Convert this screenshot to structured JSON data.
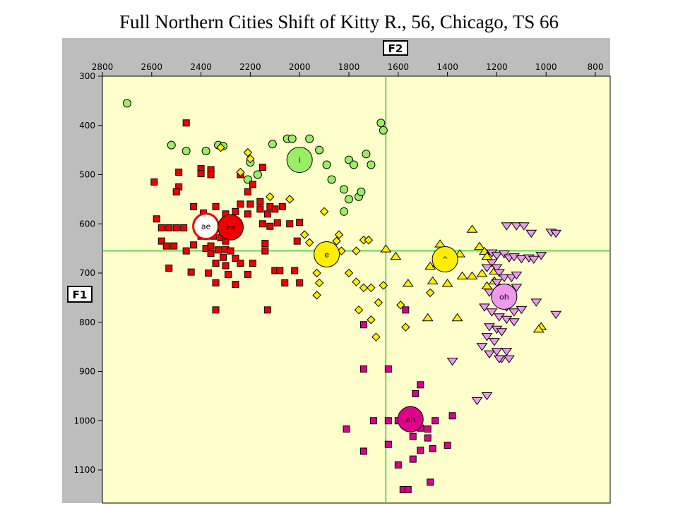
{
  "title": "Full Northern Cities Shift of Kitty R., 56, Chicago, TS 66",
  "chart_data": {
    "type": "scatter",
    "title": "Full Northern Cities Shift of Kitty R., 56, Chicago, TS 66",
    "xlabel": "F2",
    "ylabel": "F1",
    "xlim": [
      2800,
      800
    ],
    "ylim": [
      300,
      1160
    ],
    "x_reversed": true,
    "y_reversed": true,
    "x_ticks": [
      2800,
      2600,
      2400,
      2200,
      2000,
      1800,
      1600,
      1400,
      1200,
      1000,
      800
    ],
    "y_ticks": [
      300,
      400,
      500,
      600,
      700,
      800,
      900,
      1000,
      1100
    ],
    "crosshair": {
      "F2": 1650,
      "F1": 655
    },
    "colors": {
      "frame": "#bdbdbd",
      "plot_bg": "#ffffcc",
      "crosshair": "#33cc33"
    },
    "series": [
      {
        "name": "i",
        "shape": "circle",
        "color": "#99ee66",
        "mean": {
          "label": "i",
          "F2": 2000,
          "F1": 470
        },
        "points": [
          [
            2700,
            355
          ],
          [
            2520,
            440
          ],
          [
            2460,
            452
          ],
          [
            2380,
            452
          ],
          [
            2330,
            440
          ],
          [
            2310,
            442
          ],
          [
            2110,
            438
          ],
          [
            2050,
            427
          ],
          [
            2030,
            427
          ],
          [
            1960,
            427
          ],
          [
            1920,
            450
          ],
          [
            2210,
            510
          ],
          [
            2200,
            475
          ],
          [
            2170,
            500
          ],
          [
            1890,
            480
          ],
          [
            1870,
            510
          ],
          [
            1800,
            470
          ],
          [
            1780,
            480
          ],
          [
            1760,
            545
          ],
          [
            1730,
            458
          ],
          [
            1710,
            480
          ],
          [
            1820,
            530
          ],
          [
            1800,
            550
          ],
          [
            1750,
            535
          ],
          [
            1820,
            575
          ],
          [
            1670,
            395
          ],
          [
            1660,
            410
          ]
        ]
      },
      {
        "name": "ae",
        "shape": "square",
        "color": "#ee0000",
        "mean": {
          "label": "ae",
          "F2": 2280,
          "F1": 607
        },
        "second_mean": {
          "label": "ae",
          "F2": 2380,
          "F1": 605
        },
        "points": [
          [
            2590,
            515
          ],
          [
            2490,
            495
          ],
          [
            2490,
            525
          ],
          [
            2500,
            535
          ],
          [
            2400,
            488
          ],
          [
            2400,
            498
          ],
          [
            2360,
            497
          ],
          [
            2240,
            500
          ],
          [
            2190,
            520
          ],
          [
            2150,
            485
          ],
          [
            2210,
            535
          ],
          [
            2430,
            565
          ],
          [
            2390,
            578
          ],
          [
            2340,
            565
          ],
          [
            2160,
            570
          ],
          [
            2130,
            580
          ],
          [
            2120,
            565
          ],
          [
            2100,
            570
          ],
          [
            2070,
            565
          ],
          [
            2460,
            395
          ],
          [
            2360,
            490
          ],
          [
            2360,
            500
          ],
          [
            2300,
            580
          ],
          [
            2260,
            575
          ],
          [
            2240,
            560
          ],
          [
            2200,
            560
          ],
          [
            2210,
            580
          ],
          [
            2160,
            555
          ],
          [
            2300,
            600
          ],
          [
            2580,
            590
          ],
          [
            2560,
            608
          ],
          [
            2530,
            608
          ],
          [
            2500,
            608
          ],
          [
            2470,
            608
          ],
          [
            2400,
            625
          ],
          [
            2350,
            625
          ],
          [
            2320,
            628
          ],
          [
            2300,
            635
          ],
          [
            2560,
            635
          ],
          [
            2540,
            645
          ],
          [
            2510,
            645
          ],
          [
            2430,
            643
          ],
          [
            2460,
            655
          ],
          [
            2380,
            650
          ],
          [
            2360,
            645
          ],
          [
            2330,
            653
          ],
          [
            2300,
            652
          ],
          [
            2280,
            655
          ],
          [
            2360,
            660
          ],
          [
            2310,
            668
          ],
          [
            2260,
            670
          ],
          [
            2340,
            680
          ],
          [
            2300,
            685
          ],
          [
            2240,
            680
          ],
          [
            2190,
            680
          ],
          [
            2530,
            690
          ],
          [
            2440,
            698
          ],
          [
            2370,
            700
          ],
          [
            2290,
            703
          ],
          [
            2210,
            703
          ],
          [
            2340,
            720
          ],
          [
            2260,
            723
          ],
          [
            2100,
            695
          ],
          [
            2080,
            695
          ],
          [
            2020,
            695
          ],
          [
            2060,
            720
          ],
          [
            2000,
            720
          ],
          [
            2140,
            655
          ],
          [
            2010,
            635
          ],
          [
            2340,
            775
          ],
          [
            2130,
            775
          ],
          [
            2150,
            600
          ],
          [
            2120,
            605
          ],
          [
            2090,
            598
          ],
          [
            2040,
            600
          ],
          [
            2000,
            597
          ],
          [
            2140,
            640
          ]
        ]
      },
      {
        "name": "e",
        "shape": "diamond",
        "color": "#ffee00",
        "mean": {
          "label": "e",
          "F2": 1890,
          "F1": 662
        },
        "points": [
          [
            2320,
            445
          ],
          [
            2210,
            455
          ],
          [
            2200,
            468
          ],
          [
            2240,
            495
          ],
          [
            2120,
            545
          ],
          [
            2040,
            550
          ],
          [
            1900,
            575
          ],
          [
            1980,
            622
          ],
          [
            1960,
            638
          ],
          [
            1840,
            622
          ],
          [
            1850,
            635
          ],
          [
            1830,
            655
          ],
          [
            1740,
            633
          ],
          [
            1720,
            633
          ],
          [
            1770,
            655
          ],
          [
            1800,
            700
          ],
          [
            1770,
            718
          ],
          [
            1740,
            730
          ],
          [
            1710,
            730
          ],
          [
            1660,
            725
          ],
          [
            1680,
            760
          ],
          [
            1760,
            775
          ],
          [
            1710,
            795
          ],
          [
            1690,
            830
          ],
          [
            1930,
            700
          ],
          [
            1920,
            720
          ],
          [
            1930,
            745
          ],
          [
            1590,
            765
          ],
          [
            1570,
            810
          ],
          [
            1470,
            740
          ]
        ]
      },
      {
        "name": "^",
        "shape": "triangle-up",
        "color": "#ffee00",
        "mean": {
          "label": "^",
          "F2": 1410,
          "F1": 672
        },
        "points": [
          [
            1650,
            650
          ],
          [
            1610,
            665
          ],
          [
            1470,
            685
          ],
          [
            1430,
            640
          ],
          [
            1440,
            680
          ],
          [
            1350,
            660
          ],
          [
            1300,
            610
          ],
          [
            1270,
            645
          ],
          [
            1250,
            655
          ],
          [
            1240,
            665
          ],
          [
            1260,
            700
          ],
          [
            1300,
            705
          ],
          [
            1340,
            705
          ],
          [
            1400,
            720
          ],
          [
            1460,
            715
          ],
          [
            1560,
            720
          ],
          [
            1210,
            695
          ],
          [
            1210,
            715
          ],
          [
            1240,
            725
          ],
          [
            1480,
            790
          ],
          [
            1360,
            790
          ],
          [
            1020,
            808
          ],
          [
            1030,
            813
          ]
        ]
      },
      {
        "name": "oh",
        "shape": "triangle-down",
        "color": "#ee99ee",
        "mean": {
          "label": "oh",
          "F2": 1170,
          "F1": 748
        },
        "points": [
          [
            1220,
            660
          ],
          [
            1200,
            665
          ],
          [
            1170,
            662
          ],
          [
            1150,
            670
          ],
          [
            1130,
            668
          ],
          [
            1100,
            672
          ],
          [
            1070,
            670
          ],
          [
            1050,
            673
          ],
          [
            1020,
            665
          ],
          [
            1160,
            605
          ],
          [
            1120,
            605
          ],
          [
            1090,
            605
          ],
          [
            1060,
            620
          ],
          [
            980,
            618
          ],
          [
            960,
            620
          ],
          [
            1220,
            680
          ],
          [
            1200,
            690
          ],
          [
            1190,
            700
          ],
          [
            1170,
            710
          ],
          [
            1140,
            710
          ],
          [
            1120,
            705
          ],
          [
            1240,
            690
          ],
          [
            1200,
            720
          ],
          [
            1170,
            730
          ],
          [
            1140,
            735
          ],
          [
            1120,
            730
          ],
          [
            1230,
            740
          ],
          [
            1190,
            760
          ],
          [
            1160,
            770
          ],
          [
            1130,
            780
          ],
          [
            1100,
            775
          ],
          [
            1250,
            770
          ],
          [
            1220,
            780
          ],
          [
            1190,
            790
          ],
          [
            1160,
            795
          ],
          [
            1130,
            800
          ],
          [
            1230,
            810
          ],
          [
            1200,
            815
          ],
          [
            1180,
            820
          ],
          [
            1240,
            830
          ],
          [
            1210,
            840
          ],
          [
            1230,
            865
          ],
          [
            1200,
            860
          ],
          [
            1180,
            875
          ],
          [
            1160,
            860
          ],
          [
            1150,
            875
          ],
          [
            1380,
            880
          ],
          [
            1190,
            875
          ],
          [
            1260,
            850
          ],
          [
            1280,
            960
          ],
          [
            1240,
            950
          ],
          [
            1040,
            760
          ],
          [
            960,
            785
          ]
        ]
      },
      {
        "name": "ah",
        "shape": "square",
        "color": "#dd0088",
        "mean": {
          "label": "ah",
          "F2": 1550,
          "F1": 997
        },
        "points": [
          [
            1570,
            775
          ],
          [
            1740,
            805
          ],
          [
            1740,
            895
          ],
          [
            1640,
            895
          ],
          [
            1510,
            927
          ],
          [
            1530,
            945
          ],
          [
            1600,
            1000
          ],
          [
            1640,
            1000
          ],
          [
            1700,
            1000
          ],
          [
            1810,
            1017
          ],
          [
            1530,
            1007
          ],
          [
            1510,
            1015
          ],
          [
            1480,
            1017
          ],
          [
            1450,
            1000
          ],
          [
            1540,
            1032
          ],
          [
            1480,
            1035
          ],
          [
            1510,
            1060
          ],
          [
            1460,
            1057
          ],
          [
            1380,
            990
          ],
          [
            1400,
            1050
          ],
          [
            1640,
            1048
          ],
          [
            1740,
            1062
          ],
          [
            1540,
            1078
          ],
          [
            1600,
            1090
          ],
          [
            1470,
            1125
          ],
          [
            1580,
            1140
          ],
          [
            1560,
            1140
          ]
        ]
      }
    ]
  }
}
